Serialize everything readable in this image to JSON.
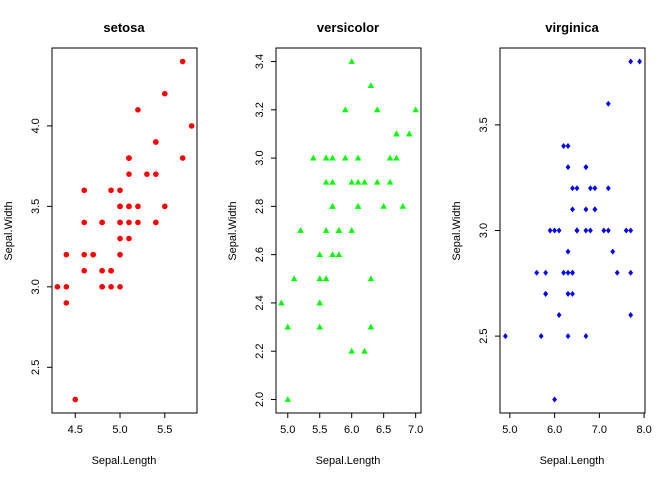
{
  "chart_data": [
    {
      "type": "scatter",
      "title": "setosa",
      "xlabel": "Sepal.Length",
      "ylabel": "Sepal.Width",
      "xlim": [
        4.3,
        5.8
      ],
      "ylim": [
        2.3,
        4.4
      ],
      "xticks": [
        {
          "v": 4.5,
          "label": "4.5"
        },
        {
          "v": 5.0,
          "label": "5.0"
        },
        {
          "v": 5.5,
          "label": "5.5"
        }
      ],
      "yticks": [
        {
          "v": 2.5,
          "label": "2.5"
        },
        {
          "v": 3.0,
          "label": "3.0"
        },
        {
          "v": 3.5,
          "label": "3.5"
        },
        {
          "v": 4.0,
          "label": "4.0"
        }
      ],
      "marker": "circle",
      "color": "#ff0000",
      "x": [
        5.1,
        4.9,
        4.7,
        4.6,
        5.0,
        5.4,
        4.6,
        5.0,
        4.4,
        4.9,
        5.4,
        4.8,
        4.8,
        4.3,
        5.8,
        5.7,
        5.4,
        5.1,
        5.7,
        5.1,
        5.4,
        5.1,
        4.6,
        5.1,
        4.8,
        5.0,
        5.0,
        5.2,
        5.2,
        4.7,
        4.8,
        5.4,
        5.2,
        5.5,
        4.9,
        5.0,
        5.5,
        4.9,
        4.4,
        5.1,
        5.0,
        4.5,
        4.4,
        5.0,
        5.1,
        4.8,
        5.1,
        4.6,
        5.3,
        5.0
      ],
      "y": [
        3.5,
        3.0,
        3.2,
        3.1,
        3.6,
        3.9,
        3.4,
        3.4,
        2.9,
        3.1,
        3.7,
        3.4,
        3.0,
        3.0,
        4.0,
        4.4,
        3.9,
        3.5,
        3.8,
        3.8,
        3.4,
        3.7,
        3.6,
        3.3,
        3.4,
        3.0,
        3.4,
        3.5,
        3.4,
        3.2,
        3.1,
        3.4,
        4.1,
        4.2,
        3.1,
        3.2,
        3.5,
        3.6,
        3.0,
        3.4,
        3.5,
        2.3,
        3.2,
        3.5,
        3.8,
        3.0,
        3.8,
        3.2,
        3.7,
        3.3
      ]
    },
    {
      "type": "scatter",
      "title": "versicolor",
      "xlabel": "Sepal.Length",
      "ylabel": "Sepal.Width",
      "xlim": [
        4.9,
        7.0
      ],
      "ylim": [
        2.0,
        3.4
      ],
      "xticks": [
        {
          "v": 5.0,
          "label": "5.0"
        },
        {
          "v": 5.5,
          "label": "5.5"
        },
        {
          "v": 6.0,
          "label": "6.0"
        },
        {
          "v": 6.5,
          "label": "6.5"
        },
        {
          "v": 7.0,
          "label": "7.0"
        }
      ],
      "yticks": [
        {
          "v": 2.0,
          "label": "2.0"
        },
        {
          "v": 2.2,
          "label": "2.2"
        },
        {
          "v": 2.4,
          "label": "2.4"
        },
        {
          "v": 2.6,
          "label": "2.6"
        },
        {
          "v": 2.8,
          "label": "2.8"
        },
        {
          "v": 3.0,
          "label": "3.0"
        },
        {
          "v": 3.2,
          "label": "3.2"
        },
        {
          "v": 3.4,
          "label": "3.4"
        }
      ],
      "marker": "triangle",
      "color": "#00ff00",
      "x": [
        7.0,
        6.4,
        6.9,
        5.5,
        6.5,
        5.7,
        6.3,
        4.9,
        6.6,
        5.2,
        5.0,
        5.9,
        6.0,
        6.1,
        5.6,
        6.7,
        5.6,
        5.8,
        6.2,
        5.6,
        5.9,
        6.1,
        6.3,
        6.1,
        6.4,
        6.6,
        6.8,
        6.7,
        6.0,
        5.7,
        5.5,
        5.5,
        5.8,
        6.0,
        5.4,
        6.0,
        6.7,
        6.3,
        5.6,
        5.5,
        5.5,
        6.1,
        5.8,
        5.0,
        5.6,
        5.7,
        5.7,
        6.2,
        5.1,
        5.7
      ],
      "y": [
        3.2,
        3.2,
        3.1,
        2.3,
        2.8,
        2.8,
        3.3,
        2.4,
        2.9,
        2.7,
        2.0,
        3.0,
        2.2,
        2.9,
        2.9,
        3.1,
        3.0,
        2.7,
        2.2,
        2.5,
        3.2,
        2.8,
        2.5,
        2.8,
        2.9,
        3.0,
        2.8,
        3.0,
        2.9,
        2.6,
        2.4,
        2.4,
        2.7,
        2.7,
        3.0,
        3.4,
        3.1,
        2.3,
        3.0,
        2.5,
        2.6,
        3.0,
        2.6,
        2.3,
        2.7,
        3.0,
        2.9,
        2.9,
        2.5,
        2.8
      ]
    },
    {
      "type": "scatter",
      "title": "virginica",
      "xlabel": "Sepal.Length",
      "ylabel": "Sepal.Width",
      "xlim": [
        4.9,
        7.9
      ],
      "ylim": [
        2.2,
        3.8
      ],
      "xticks": [
        {
          "v": 5.0,
          "label": "5.0"
        },
        {
          "v": 6.0,
          "label": "6.0"
        },
        {
          "v": 7.0,
          "label": "7.0"
        },
        {
          "v": 8.0,
          "label": "8.0"
        }
      ],
      "yticks": [
        {
          "v": 2.5,
          "label": "2.5"
        },
        {
          "v": 3.0,
          "label": "3.0"
        },
        {
          "v": 3.5,
          "label": "3.5"
        }
      ],
      "marker": "diamond",
      "color": "#0000ff",
      "x": [
        6.3,
        5.8,
        7.1,
        6.3,
        6.5,
        7.6,
        4.9,
        7.3,
        6.7,
        7.2,
        6.5,
        6.4,
        6.8,
        5.7,
        5.8,
        6.4,
        6.5,
        7.7,
        7.7,
        6.0,
        6.9,
        5.6,
        7.7,
        6.3,
        6.7,
        7.2,
        6.2,
        6.1,
        6.4,
        7.2,
        7.4,
        7.9,
        6.4,
        6.3,
        6.1,
        7.7,
        6.3,
        6.4,
        6.0,
        6.9,
        6.7,
        6.9,
        5.8,
        6.8,
        6.7,
        6.7,
        6.3,
        6.5,
        6.2,
        5.9
      ],
      "y": [
        3.3,
        2.7,
        3.0,
        2.9,
        3.0,
        3.0,
        2.5,
        2.9,
        2.5,
        3.6,
        3.2,
        2.7,
        3.0,
        2.5,
        2.8,
        3.2,
        3.0,
        3.8,
        2.6,
        2.2,
        3.2,
        2.8,
        2.8,
        2.7,
        3.3,
        3.2,
        2.8,
        3.0,
        2.8,
        3.0,
        2.8,
        3.8,
        2.8,
        2.8,
        2.6,
        3.0,
        3.4,
        3.1,
        3.0,
        3.1,
        3.1,
        3.1,
        2.7,
        3.2,
        3.3,
        3.0,
        2.5,
        3.0,
        3.4,
        3.0
      ]
    }
  ]
}
